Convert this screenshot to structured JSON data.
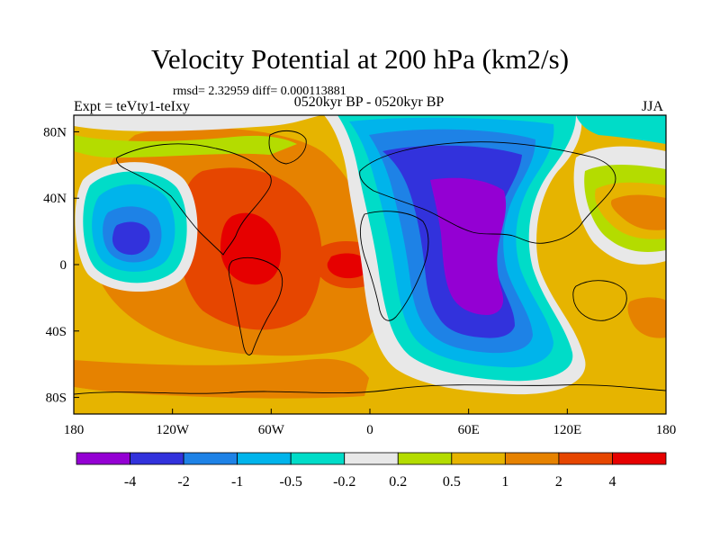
{
  "chart_data": {
    "type": "filled-contour-map",
    "title": "Velocity Potential at 200 hPa (km2/s)",
    "stats_text": "rmsd= 2.32959 diff= 0.000113881",
    "left_label": "Expt = teVty1-teIxy",
    "center_label": "0520kyr BP - 0520kyr BP",
    "right_label": "JJA",
    "x_ticks": [
      "180",
      "120W",
      "60W",
      "0",
      "60E",
      "120E",
      "180"
    ],
    "y_ticks": [
      "80N",
      "40N",
      "0",
      "40S",
      "80S"
    ],
    "x_range": [
      -180,
      180
    ],
    "y_range": [
      -90,
      90
    ],
    "colorbar": {
      "labels": [
        "-4",
        "-2",
        "-1",
        "-0.5",
        "-0.2",
        "0.2",
        "0.5",
        "1",
        "2",
        "4"
      ],
      "colors": [
        "#9400d3",
        "#3232dc",
        "#1e82e6",
        "#00b4eb",
        "#00dcc8",
        "#e8e8e8",
        "#b4dc00",
        "#e6b400",
        "#e68200",
        "#e64600",
        "#e60000"
      ]
    }
  }
}
